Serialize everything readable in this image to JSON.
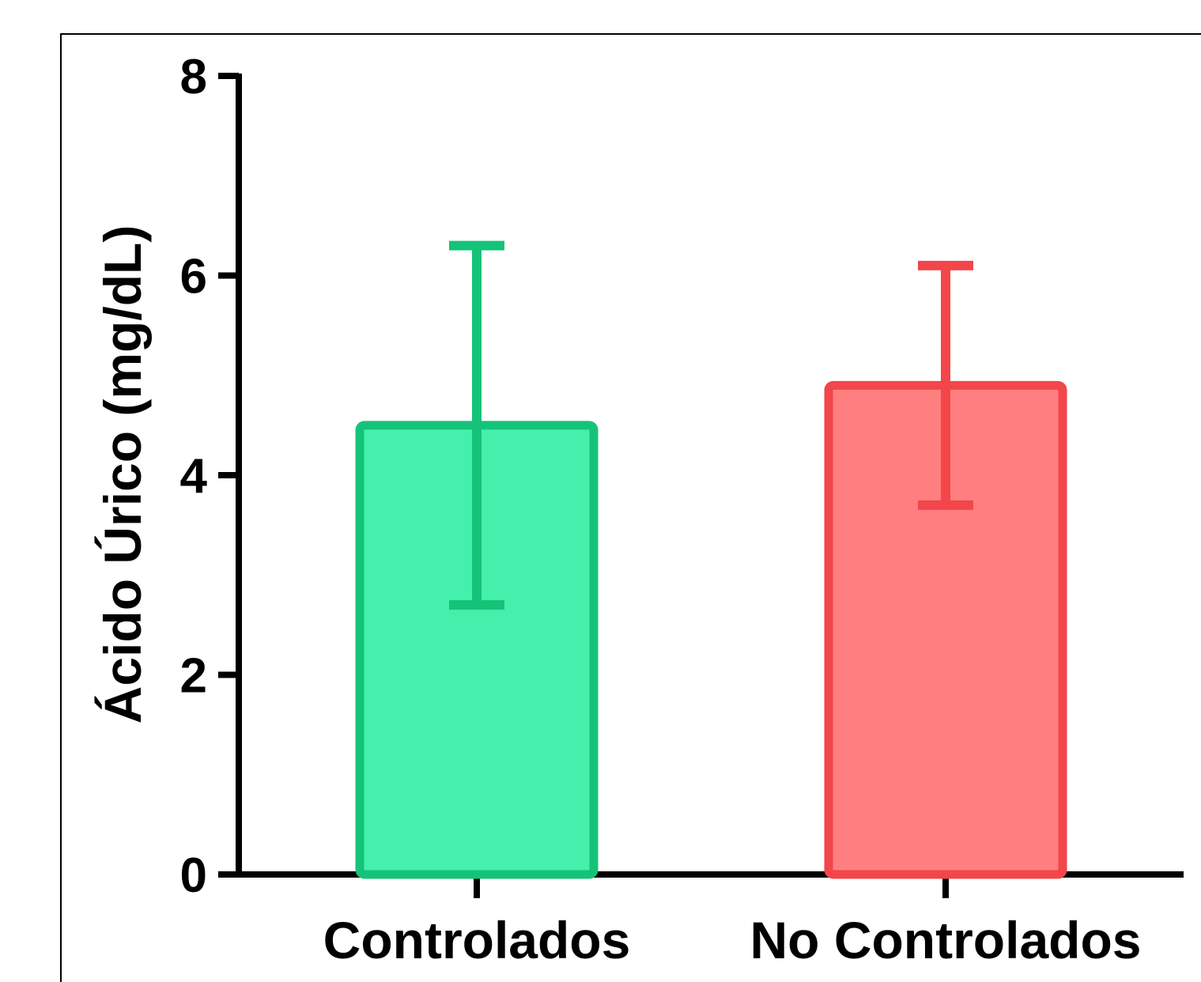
{
  "chart_data": {
    "type": "bar",
    "categories": [
      "Controlados",
      "No Controlados"
    ],
    "series": [
      {
        "values": [
          4.5,
          4.9
        ],
        "error_upper": [
          6.3,
          6.1
        ],
        "error_lower": [
          2.7,
          3.7
        ]
      }
    ],
    "colors": {
      "fill": [
        "#44f0ab",
        "#ff7f80"
      ],
      "stroke": [
        "#15c378",
        "#f2464a"
      ]
    },
    "xlabel": "",
    "ylabel": "Ácido Úrico (mg/dL)",
    "ylim": [
      0,
      8
    ],
    "yticks": [
      0,
      2,
      4,
      6,
      8
    ],
    "grid": false
  }
}
